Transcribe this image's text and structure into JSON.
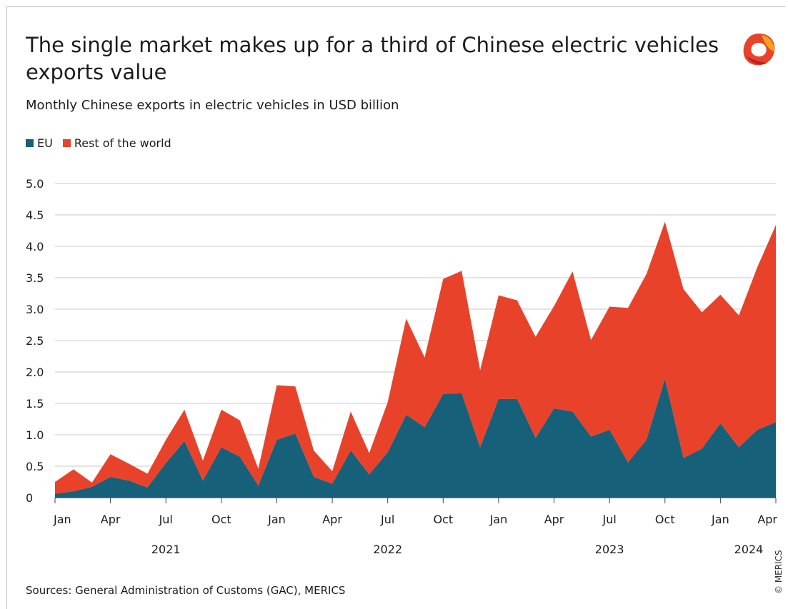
{
  "title": "The single market makes up for a third of Chinese electric vehicles exports value",
  "subtitle": "Monthly Chinese exports in electric vehicles in USD billion",
  "source": "Sources: General Administration of Customs (GAC), MERICS",
  "copyright": "© MERICS",
  "logo_icon": "merics-logo-icon",
  "colors": {
    "eu": "#16607a",
    "rest": "#e8432a",
    "grid": "#c8c8c8",
    "axis": "#444444"
  },
  "chart_data": {
    "type": "area",
    "stacked": true,
    "title": "The single market makes up for a third of Chinese electric vehicles exports value",
    "subtitle": "Monthly Chinese exports in electric vehicles in USD billion",
    "ylim": [
      0,
      5.0
    ],
    "y_ticks": [
      "5.0",
      "4.5",
      "4.0",
      "3.5",
      "3.0",
      "2.5",
      "2.0",
      "1.5",
      "1.0",
      "0.5",
      "0"
    ],
    "grid": true,
    "legend_position": "top-left",
    "x": [
      "2021-01",
      "2021-02",
      "2021-03",
      "2021-04",
      "2021-05",
      "2021-06",
      "2021-07",
      "2021-08",
      "2021-09",
      "2021-10",
      "2021-11",
      "2021-12",
      "2022-01",
      "2022-02",
      "2022-03",
      "2022-04",
      "2022-05",
      "2022-06",
      "2022-07",
      "2022-08",
      "2022-09",
      "2022-10",
      "2022-11",
      "2022-12",
      "2023-01",
      "2023-02",
      "2023-03",
      "2023-04",
      "2023-05",
      "2023-06",
      "2023-07",
      "2023-08",
      "2023-09",
      "2023-10",
      "2023-11",
      "2023-12",
      "2024-01",
      "2024-02",
      "2024-03",
      "2024-04"
    ],
    "x_tick_labels": [
      "Jan",
      "Apr",
      "Jul",
      "Oct",
      "Jan",
      "Apr",
      "Jul",
      "Oct",
      "Jan",
      "Apr",
      "Jul",
      "Oct",
      "Jan",
      "Apr"
    ],
    "x_tick_months": [
      "2021-01",
      "2021-04",
      "2021-07",
      "2021-10",
      "2022-01",
      "2022-04",
      "2022-07",
      "2022-10",
      "2023-01",
      "2023-04",
      "2023-07",
      "2023-10",
      "2024-01",
      "2024-04"
    ],
    "year_labels": [
      "2021",
      "2022",
      "2023",
      "2024"
    ],
    "year_label_months": [
      "2021-07",
      "2022-07",
      "2023-07",
      "2024-03"
    ],
    "series": [
      {
        "name": "EU",
        "values": [
          0.06,
          0.1,
          0.17,
          0.33,
          0.27,
          0.16,
          0.55,
          0.9,
          0.27,
          0.8,
          0.65,
          0.19,
          0.92,
          1.02,
          0.33,
          0.22,
          0.75,
          0.37,
          0.72,
          1.32,
          1.12,
          1.65,
          1.66,
          0.8,
          1.57,
          1.57,
          0.95,
          1.42,
          1.37,
          0.97,
          1.08,
          0.56,
          0.92,
          1.89,
          0.63,
          0.78,
          1.18,
          0.8,
          1.08,
          1.2
        ]
      },
      {
        "name": "Rest of the world",
        "values": [
          0.19,
          0.35,
          0.07,
          0.36,
          0.27,
          0.22,
          0.37,
          0.5,
          0.32,
          0.6,
          0.58,
          0.27,
          0.87,
          0.75,
          0.42,
          0.2,
          0.62,
          0.34,
          0.8,
          1.53,
          1.11,
          1.83,
          1.95,
          1.23,
          1.65,
          1.57,
          1.61,
          1.63,
          2.23,
          1.54,
          1.96,
          2.46,
          2.64,
          2.5,
          2.69,
          2.17,
          2.05,
          2.1,
          2.59,
          3.14
        ]
      }
    ]
  }
}
